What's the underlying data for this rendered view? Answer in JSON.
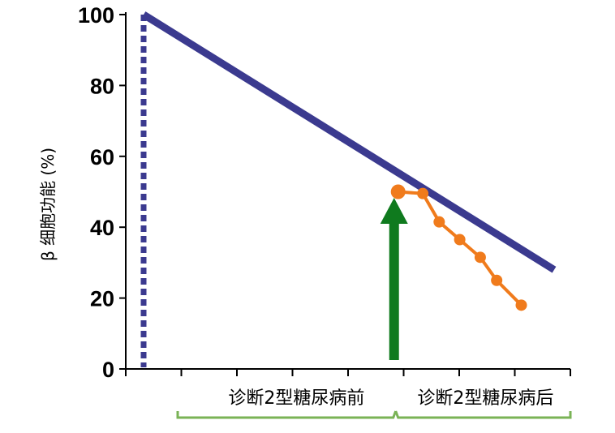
{
  "chart_data": {
    "type": "line",
    "ylabel": "β 细胞功能 (%)",
    "ylim": [
      0,
      100
    ],
    "yticks": [
      "0",
      "20",
      "40",
      "60",
      "80",
      "100"
    ],
    "phase_labels": [
      "诊断2型糖尿病前",
      "诊断2型糖尿病后"
    ],
    "series": [
      {
        "style": "straight line",
        "color": "#3b3a8f",
        "points": [
          [
            0,
            100
          ],
          [
            1,
            28
          ]
        ]
      },
      {
        "style": "line with markers",
        "color": "#f07b1c",
        "points": [
          [
            0.62,
            50
          ],
          [
            0.68,
            49.5
          ],
          [
            0.72,
            41.5
          ],
          [
            0.77,
            36.5
          ],
          [
            0.82,
            31.5
          ],
          [
            0.86,
            25
          ],
          [
            0.92,
            18
          ]
        ]
      }
    ],
    "diagnosis_arrow_color": "#0f7a1e",
    "bracket_color": "#7ab356",
    "baseline_dotted_color": "#3b3a8f"
  }
}
